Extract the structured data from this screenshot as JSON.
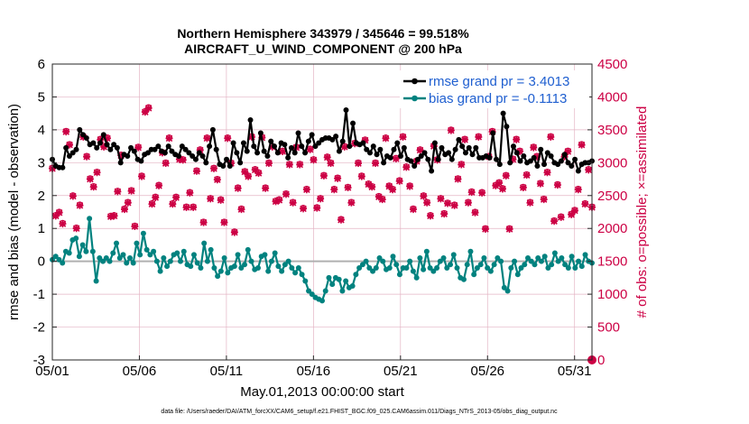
{
  "chart_data": {
    "type": "line",
    "title": "Northern Hemisphere 343979 / 345646 = 99.518%",
    "subtitle": "AIRCRAFT_U_WIND_COMPONENT @ 200 hPa",
    "xlabel": "May.01,2013 00:00:00 start",
    "ylabel": "rmse and bias (model - observation)",
    "ylabel_right": "# of obs: o=possible; ×=assimilated",
    "x_ticks": [
      "05/01",
      "05/06",
      "05/11",
      "05/16",
      "05/21",
      "05/26",
      "05/31"
    ],
    "x_tick_days": [
      0,
      5,
      10,
      15,
      20,
      25,
      30
    ],
    "xlim_days": [
      0,
      31
    ],
    "y_ticks": [
      "6",
      "5",
      "4",
      "3",
      "2",
      "1",
      "0",
      "-1",
      "-2",
      "-3"
    ],
    "ylim": [
      -3,
      6
    ],
    "y_right_ticks": [
      "4500",
      "4000",
      "3500",
      "3000",
      "2500",
      "2000",
      "1500",
      "1000",
      "500",
      "0"
    ],
    "ylim_right": [
      0,
      4500
    ],
    "grid": true,
    "legend_position": "top-right",
    "footer": "data file: /Users/raeder/DAI/ATM_forcXX/CAM6_setup/f.e21.FHIST_BGC.f09_025.CAM6assim.011/Diags_NTrS_2013-05/obs_diag_output.nc",
    "series": [
      {
        "name": "rmse grand pr = 3.4013",
        "color": "#000000",
        "marker": "diamond",
        "values": [
          3.1,
          2.9,
          2.85,
          2.85,
          3.45,
          3.2,
          3.3,
          3.4,
          4.0,
          3.85,
          3.75,
          3.55,
          3.6,
          3.45,
          3.6,
          3.85,
          3.55,
          3.4,
          3.55,
          3.45,
          3.0,
          3.25,
          3.2,
          3.45,
          3.35,
          3.1,
          3.05,
          3.25,
          3.3,
          3.4,
          3.4,
          3.5,
          3.35,
          3.3,
          3.5,
          3.35,
          3.25,
          3.2,
          3.5,
          3.4,
          3.3,
          3.2,
          3.1,
          3.3,
          3.2,
          3.0,
          3.5,
          4.0,
          3.4,
          2.95,
          2.9,
          3.1,
          2.9,
          3.6,
          3.3,
          3.0,
          3.6,
          3.35,
          4.3,
          3.5,
          3.3,
          3.9,
          3.35,
          3.2,
          3.65,
          3.5,
          3.3,
          3.6,
          3.55,
          3.15,
          3.45,
          3.3,
          3.9,
          3.5,
          3.3,
          3.65,
          3.85,
          3.5,
          3.6,
          3.7,
          3.75,
          3.75,
          3.7,
          3.8,
          3.35,
          3.65,
          4.6,
          3.5,
          4.2,
          3.6,
          3.55,
          3.6,
          3.4,
          3.3,
          3.5,
          3.25,
          3.4,
          3.0,
          3.2,
          3.15,
          3.4,
          3.6,
          3.2,
          3.45,
          3.1,
          3.05,
          2.9,
          3.1,
          3.2,
          3.3,
          3.1,
          2.75,
          3.6,
          3.1,
          3.45,
          3.25,
          3.3,
          3.1,
          3.4,
          3.7,
          3.5,
          3.3,
          3.45,
          3.25,
          3.45,
          3.15,
          3.15,
          3.2,
          3.15,
          3.9,
          3.1,
          2.95,
          4.5,
          4.1,
          3.0,
          3.5,
          3.3,
          3.05,
          3.2,
          3.0,
          3.05,
          3.15,
          2.9,
          3.4,
          2.95,
          3.3,
          3.2,
          3.0,
          2.95,
          3.05,
          3.25,
          3.0,
          2.9,
          3.1,
          2.75,
          2.95,
          3.0,
          3.0,
          3.05
        ]
      },
      {
        "name": "bias grand pr = -0.1113",
        "color": "#00827f",
        "marker": "circle",
        "values": [
          0.05,
          0.15,
          0.05,
          -0.05,
          0.3,
          0.25,
          0.65,
          0.7,
          0.15,
          0.5,
          0.3,
          1.3,
          0.3,
          -0.6,
          0.1,
          0.0,
          0.1,
          0.0,
          0.25,
          0.55,
          0.1,
          0.2,
          -0.05,
          0.1,
          -0.05,
          0.55,
          0.2,
          0.85,
          0.35,
          0.2,
          0.3,
          0.0,
          -0.3,
          0.1,
          -0.15,
          0.0,
          0.2,
          0.25,
          0.0,
          0.3,
          -0.1,
          -0.15,
          0.2,
          -0.05,
          -0.2,
          0.55,
          0.0,
          0.35,
          -0.2,
          -0.45,
          -0.3,
          0.1,
          -0.35,
          -0.2,
          -0.15,
          0.2,
          -0.2,
          -0.1,
          0.35,
          0.0,
          -0.25,
          -0.2,
          0.15,
          0.2,
          -0.3,
          0.0,
          0.25,
          -0.15,
          -0.3,
          -0.1,
          0.0,
          -0.2,
          -0.35,
          -0.2,
          -0.4,
          -0.6,
          -0.9,
          -1.0,
          -1.1,
          -1.15,
          -1.2,
          -0.9,
          -0.5,
          -0.7,
          -0.5,
          -0.55,
          -0.9,
          -0.6,
          -0.8,
          -0.75,
          -0.4,
          -0.2,
          -0.1,
          0.0,
          -0.2,
          -0.3,
          -0.2,
          0.1,
          0.0,
          -0.25,
          -0.2,
          0.15,
          -0.1,
          -0.4,
          -0.2,
          -0.2,
          0.0,
          -0.3,
          -0.5,
          0.1,
          -0.25,
          0.3,
          -0.2,
          -0.3,
          -0.2,
          0.0,
          0.1,
          -0.2,
          -0.1,
          0.2,
          -0.2,
          -0.5,
          -0.55,
          -0.1,
          0.3,
          -0.4,
          -0.2,
          -0.1,
          0.1,
          -0.2,
          -0.3,
          -0.1,
          0.1,
          0.0,
          -0.8,
          -0.9,
          -0.2,
          0.0,
          -0.4,
          -0.2,
          -0.1,
          0.1,
          0.0,
          -0.1,
          0.1,
          0.0,
          0.15,
          -0.2,
          -0.1,
          0.25,
          0.0,
          0.1,
          -0.1,
          -0.2,
          0.15,
          -0.2,
          0.0,
          -0.15,
          0.2,
          0.0,
          -0.05
        ]
      }
    ],
    "obs_series": [
      {
        "name": "possible",
        "marker": "o",
        "color": "#cc0044",
        "values": [
          2920,
          2200,
          2250,
          2080,
          3480,
          3280,
          2500,
          2010,
          2360,
          3400,
          3100,
          2760,
          2640,
          2860,
          3360,
          3250,
          3380,
          2190,
          2200,
          2570,
          3120,
          2300,
          2400,
          2580,
          2040,
          3240,
          2800,
          3780,
          3840,
          2380,
          2480,
          2660,
          3160,
          3000,
          3380,
          2380,
          2480,
          3060,
          3050,
          2330,
          2550,
          2330,
          2880,
          3200,
          2100,
          3380,
          2460,
          2920,
          2750,
          2440,
          2100,
          3380,
          3000,
          1950,
          2620,
          2300,
          2870,
          2800,
          3400,
          2900,
          2850,
          3390,
          2620,
          3000,
          3250,
          2420,
          2440,
          3180,
          2530,
          2980,
          2400,
          3240,
          2980,
          2310,
          2600,
          3210,
          3050,
          2320,
          2460,
          2810,
          3090,
          3000,
          2600,
          2770,
          2140,
          3250,
          2630,
          2400,
          3300,
          3000,
          2800,
          3350,
          2680,
          2640,
          3000,
          2490,
          2450,
          3380,
          2650,
          2600,
          3070,
          2730,
          3400,
          2940,
          2650,
          2300,
          3030,
          3200,
          2500,
          2400,
          2200,
          3260,
          3050,
          2460,
          2230,
          2390,
          3500,
          2360,
          2760,
          2980,
          3360,
          2400,
          2560,
          2250,
          3400,
          2550,
          2000,
          3100,
          3480,
          2660,
          2700,
          2610,
          2810,
          2000,
          3060,
          3360,
          3180,
          2630,
          2820,
          2400,
          3240,
          3100,
          2690,
          2450,
          2860,
          3400,
          2120,
          2670,
          2180,
          3100,
          3180,
          2220,
          2280,
          2600,
          3280,
          2380,
          2900,
          2330
        ]
      },
      {
        "name": "assimilated",
        "marker": "x",
        "color": "#cc0044",
        "values": [
          2910,
          2190,
          2240,
          2070,
          3470,
          3270,
          2490,
          2000,
          2350,
          3390,
          3090,
          2750,
          2630,
          2850,
          3350,
          3240,
          3370,
          2180,
          2190,
          2560,
          3110,
          2290,
          2390,
          2570,
          2030,
          3230,
          2790,
          3770,
          3830,
          2370,
          2470,
          2650,
          3150,
          2990,
          3370,
          2370,
          2470,
          3050,
          3040,
          2320,
          2540,
          2320,
          2870,
          3190,
          2090,
          3370,
          2450,
          2910,
          2740,
          2430,
          2090,
          3370,
          2990,
          1940,
          2610,
          2290,
          2860,
          2790,
          3390,
          2890,
          2840,
          3380,
          2610,
          2990,
          3240,
          2410,
          2430,
          3170,
          2520,
          2970,
          2390,
          3230,
          2970,
          2300,
          2590,
          3200,
          3040,
          2310,
          2450,
          2800,
          3080,
          2990,
          2590,
          2760,
          2130,
          3240,
          2620,
          2390,
          3290,
          2990,
          2790,
          3340,
          2670,
          2630,
          2990,
          2480,
          2440,
          3370,
          2640,
          2590,
          3060,
          2720,
          3390,
          2930,
          2640,
          2290,
          3020,
          3190,
          2490,
          2390,
          2190,
          3250,
          3040,
          2450,
          2220,
          2380,
          3490,
          2350,
          2750,
          2970,
          3350,
          2390,
          2550,
          2240,
          3390,
          2540,
          1990,
          3090,
          3470,
          2650,
          2690,
          2600,
          2800,
          1990,
          3050,
          3350,
          3170,
          2620,
          2810,
          2390,
          3230,
          3090,
          2680,
          2440,
          2850,
          3390,
          2110,
          2660,
          2170,
          3090,
          3170,
          2210,
          2270,
          2590,
          3270,
          2370,
          2890,
          2320
        ]
      }
    ]
  }
}
